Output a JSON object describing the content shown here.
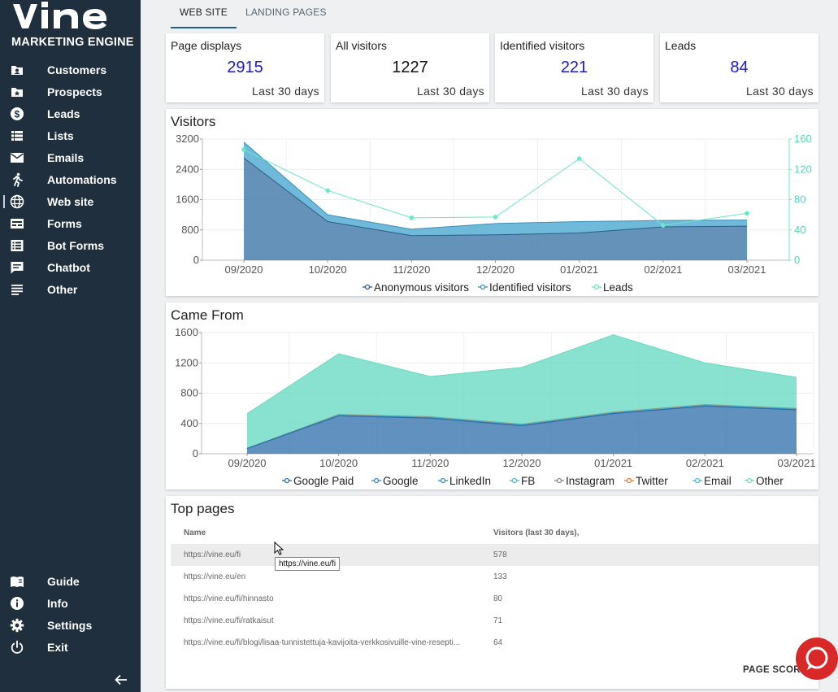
{
  "brand": {
    "name": "vine",
    "tagline": "MARKETING ENGINE"
  },
  "nav": [
    {
      "label": "Customers",
      "icon": "customers-icon"
    },
    {
      "label": "Prospects",
      "icon": "prospects-icon"
    },
    {
      "label": "Leads",
      "icon": "dollar-icon"
    },
    {
      "label": "Lists",
      "icon": "list-icon"
    },
    {
      "label": "Emails",
      "icon": "mail-icon"
    },
    {
      "label": "Automations",
      "icon": "runner-icon"
    },
    {
      "label": "Web site",
      "icon": "globe-icon",
      "active": true
    },
    {
      "label": "Forms",
      "icon": "form-icon"
    },
    {
      "label": "Bot Forms",
      "icon": "bot-form-icon"
    },
    {
      "label": "Chatbot",
      "icon": "chat-icon"
    },
    {
      "label": "Other",
      "icon": "lines-icon"
    }
  ],
  "nav_bottom": [
    {
      "label": "Guide",
      "icon": "book-icon"
    },
    {
      "label": "Info",
      "icon": "info-icon"
    },
    {
      "label": "Settings",
      "icon": "gear-icon"
    },
    {
      "label": "Exit",
      "icon": "power-icon"
    }
  ],
  "tabs": [
    {
      "label": "WEB SITE",
      "active": true
    },
    {
      "label": "LANDING PAGES"
    }
  ],
  "stats": [
    {
      "label": "Page displays",
      "value": "2915",
      "sub": "Last 30 days",
      "color": "#1a1acc"
    },
    {
      "label": "All visitors",
      "value": "1227",
      "sub": "Last 30 days",
      "color": "#111111"
    },
    {
      "label": "Identified visitors",
      "value": "221",
      "sub": "Last 30 days",
      "color": "#1a1acc"
    },
    {
      "label": "Leads",
      "value": "84",
      "sub": "Last 30 days",
      "color": "#1a1acc"
    }
  ],
  "chart_data": [
    {
      "type": "area",
      "title": "Visitors",
      "categories": [
        "09/2020",
        "10/2020",
        "11/2020",
        "12/2020",
        "01/2021",
        "02/2021",
        "03/2021"
      ],
      "ylim": [
        0,
        3200
      ],
      "yticks": [
        0,
        800,
        1600,
        2400,
        3200
      ],
      "y2lim": [
        0,
        160
      ],
      "y2ticks": [
        0,
        40,
        80,
        120,
        160
      ],
      "series": [
        {
          "name": "Anonymous visitors",
          "values": [
            2700,
            1020,
            650,
            670,
            720,
            880,
            900
          ],
          "color": "#4a7fad",
          "axis": "left"
        },
        {
          "name": "Identified visitors",
          "values": [
            420,
            180,
            170,
            300,
            300,
            170,
            160
          ],
          "color": "#5fb3d6",
          "axis": "left",
          "stacked": true
        },
        {
          "name": "Leads",
          "values": [
            146,
            92,
            56,
            57,
            134,
            46,
            62
          ],
          "color": "#6be6c8",
          "axis": "right"
        }
      ],
      "legend": "bottom",
      "grid": true
    },
    {
      "type": "area",
      "title": "Came From",
      "categories": [
        "09/2020",
        "10/2020",
        "11/2020",
        "12/2020",
        "01/2021",
        "02/2021",
        "03/2021"
      ],
      "ylim": [
        0,
        1600
      ],
      "yticks": [
        0,
        400,
        800,
        1200,
        1600
      ],
      "series": [
        {
          "name": "Google Paid",
          "values": [
            70,
            500,
            470,
            370,
            530,
            630,
            580
          ],
          "color": "#2c6ca8"
        },
        {
          "name": "Google",
          "values": [
            0,
            0,
            0,
            0,
            0,
            0,
            0
          ],
          "color": "#3a84c8"
        },
        {
          "name": "LinkedIn",
          "values": [
            0,
            5,
            5,
            5,
            5,
            5,
            5
          ],
          "color": "#2f8fb8"
        },
        {
          "name": "FB",
          "values": [
            0,
            5,
            5,
            5,
            5,
            5,
            5
          ],
          "color": "#4fb5d5"
        },
        {
          "name": "Instagram",
          "values": [
            0,
            0,
            0,
            0,
            0,
            0,
            0
          ],
          "color": "#888888"
        },
        {
          "name": "Twitter",
          "values": [
            0,
            5,
            5,
            5,
            5,
            5,
            5
          ],
          "color": "#e07b3a"
        },
        {
          "name": "Email",
          "values": [
            0,
            5,
            5,
            5,
            5,
            5,
            5
          ],
          "color": "#3fc0c8"
        },
        {
          "name": "Other",
          "values": [
            460,
            800,
            530,
            750,
            1020,
            550,
            410
          ],
          "color": "#6cd9c3"
        }
      ],
      "legend": "bottom",
      "grid": true
    }
  ],
  "top_pages": {
    "title": "Top pages",
    "columns": [
      "Name",
      "Visitors (last 30 days),"
    ],
    "rows": [
      [
        "https://vine.eu/fi",
        "578"
      ],
      [
        "https://vine.eu/en",
        "133"
      ],
      [
        "https://vine.eu/fi/hinnasto",
        "80"
      ],
      [
        "https://vine.eu/fi/ratkaisut",
        "71"
      ],
      [
        "https://vine.eu/fi/blogi/lisaa-tunnistettuja-kavijoita-verkkosivuille-vine-resepti...",
        "64"
      ]
    ],
    "tooltip": "https://vine.eu/fi",
    "button": "PAGE SCORE"
  }
}
